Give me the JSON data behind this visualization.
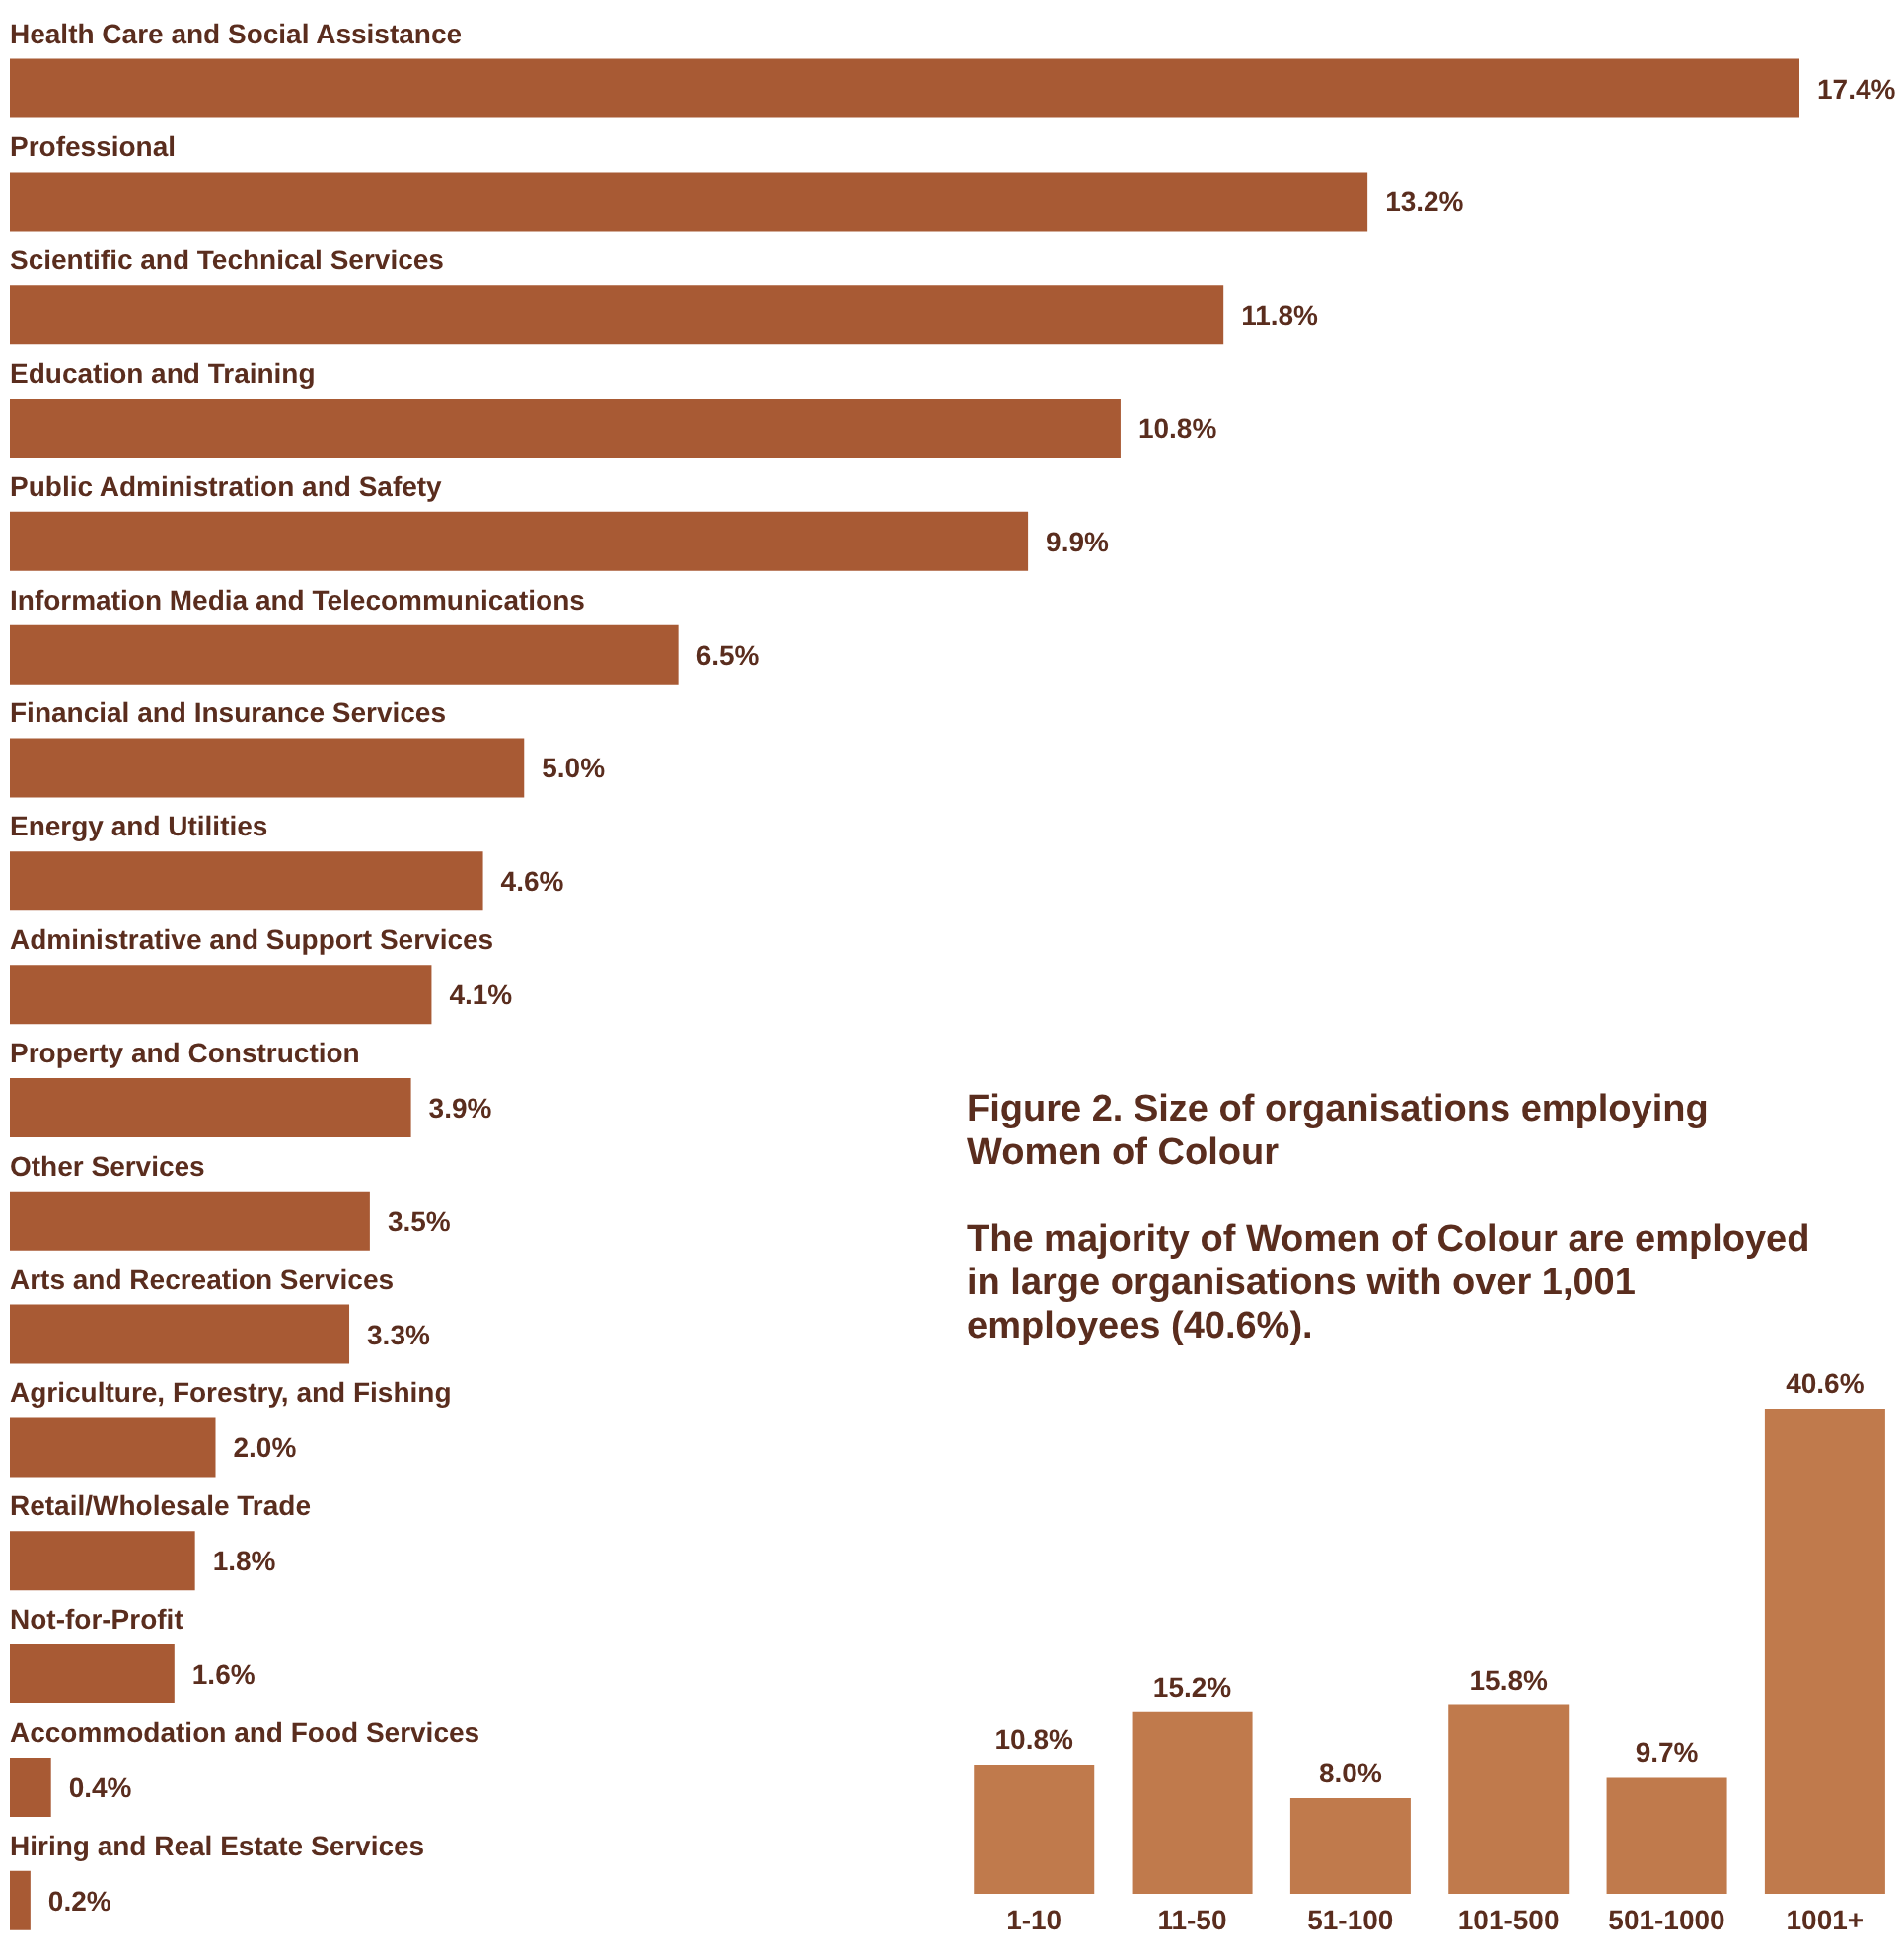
{
  "chart_data": [
    {
      "type": "bar",
      "orientation": "horizontal",
      "categories": [
        "Health Care and Social Assistance",
        "Professional",
        "Scientific and Technical Services",
        "Education and Training",
        "Public Administration and Safety",
        "Information Media and Telecommunications",
        "Financial and Insurance Services",
        "Energy and Utilities",
        "Administrative and Support Services",
        "Property and Construction",
        "Other Services",
        "Arts and Recreation Services",
        "Agriculture, Forestry, and Fishing",
        "Retail/Wholesale Trade",
        "Not-for-Profit",
        "Accommodation and Food Services",
        "Hiring and Real Estate Services"
      ],
      "values": [
        17.4,
        13.2,
        11.8,
        10.8,
        9.9,
        6.5,
        5.0,
        4.6,
        4.1,
        3.9,
        3.5,
        3.3,
        2.0,
        1.8,
        1.6,
        0.4,
        0.2
      ],
      "value_labels": [
        "17.4%",
        "13.2%",
        "11.8%",
        "10.8%",
        "9.9%",
        "6.5%",
        "5.0%",
        "4.6%",
        "4.1%",
        "3.9%",
        "3.5%",
        "3.3%",
        "2.0%",
        "1.8%",
        "1.6%",
        "0.4%",
        "0.2%"
      ],
      "color": "#a85a34",
      "grid": false,
      "legend": false
    },
    {
      "type": "bar",
      "title": "Figure 2. Size of organisations employing Women of Colour",
      "subtitle": "The majority of Women of Colour are employed in large organisations with over 1,001 employees (40.6%).",
      "categories": [
        "1-10",
        "11-50",
        "51-100",
        "101-500",
        "501-1000",
        "1001+"
      ],
      "values": [
        10.8,
        15.2,
        8.0,
        15.8,
        9.7,
        40.6
      ],
      "value_labels": [
        "10.8%",
        "15.2%",
        "8.0%",
        "15.8%",
        "9.7%",
        "40.6%"
      ],
      "color": "#c07a4c",
      "grid": false,
      "legend": false
    }
  ]
}
